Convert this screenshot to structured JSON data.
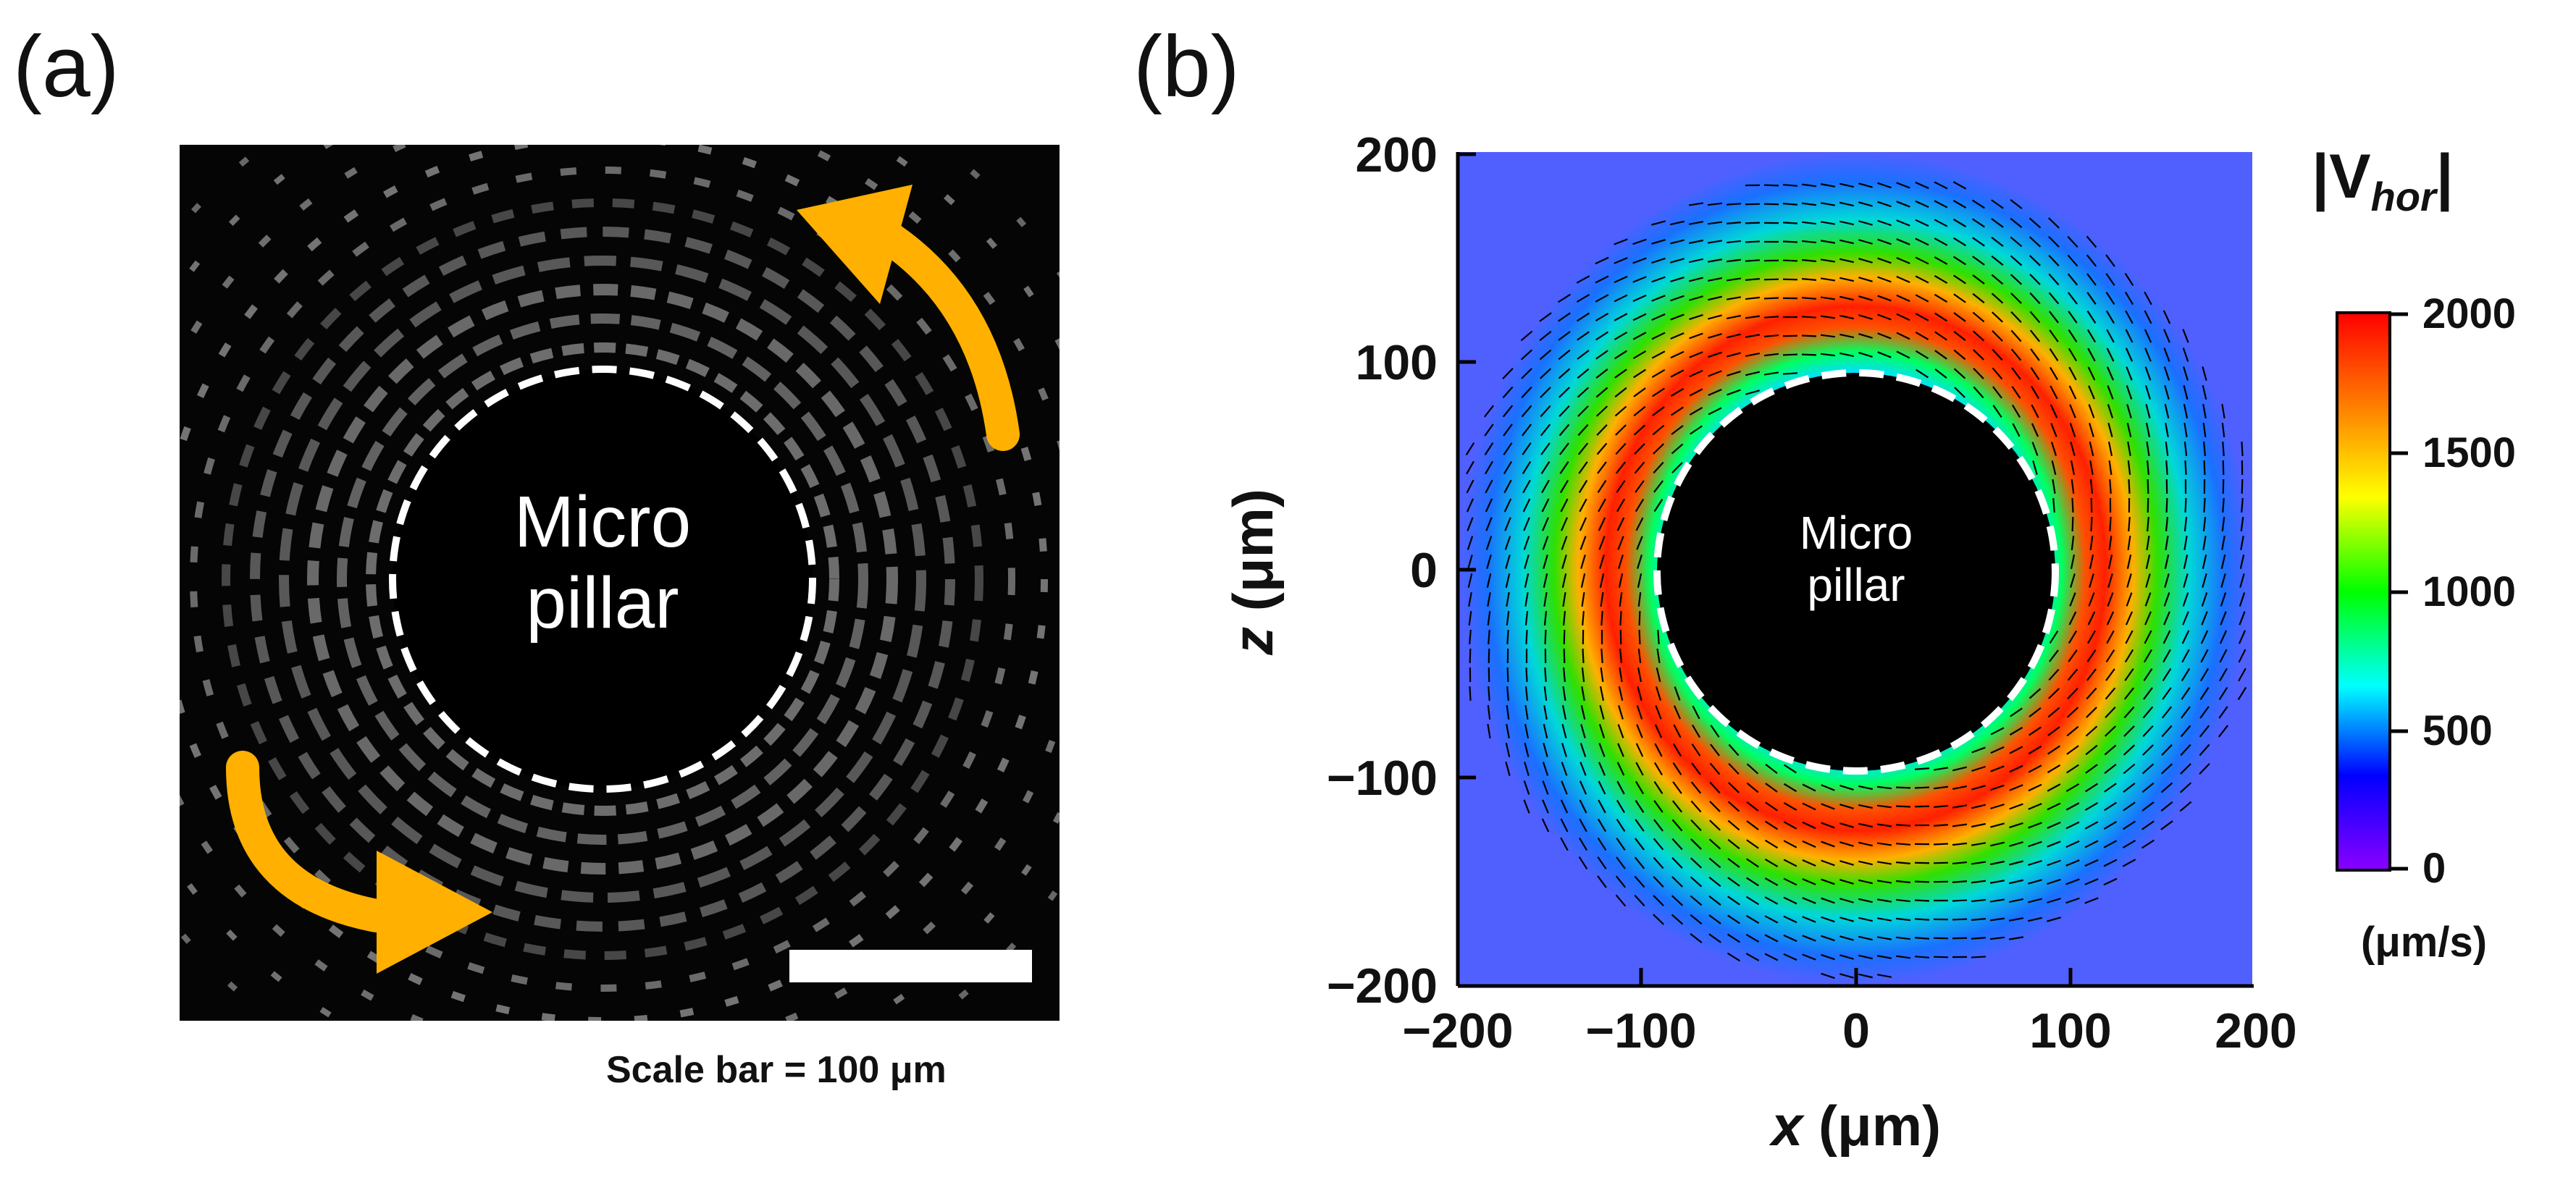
{
  "panels": {
    "a": {
      "label": "(a)",
      "pillar_text": "Micro\npillar",
      "scale_bar_caption": "Scale bar = 100 μm"
    },
    "b": {
      "label": "(b)",
      "pillar_text": "Micro\npillar",
      "x_axis": {
        "var": "x",
        "unit": " (μm)",
        "ticks": [
          "−200",
          "−100",
          "0",
          "100",
          "200"
        ]
      },
      "z_axis": {
        "var": "z",
        "unit": " (μm)",
        "ticks": [
          "200",
          "100",
          "0",
          "−100",
          "−200"
        ]
      },
      "colorbar": {
        "title_prefix": "|V",
        "title_sub": "hor",
        "title_suffix": "|",
        "unit": "(μm/s)",
        "ticks": [
          "2000",
          "1500",
          "1000",
          "500",
          "0"
        ],
        "range": [
          0,
          2000
        ],
        "colors": [
          "#8a00ff",
          "#0000ff",
          "#00ffff",
          "#00ff00",
          "#ffff00",
          "#ff8000",
          "#ff0000"
        ]
      }
    }
  },
  "colors": {
    "arrow": "#ffb000",
    "pillar": "#000000",
    "dash": "#ffffff"
  }
}
